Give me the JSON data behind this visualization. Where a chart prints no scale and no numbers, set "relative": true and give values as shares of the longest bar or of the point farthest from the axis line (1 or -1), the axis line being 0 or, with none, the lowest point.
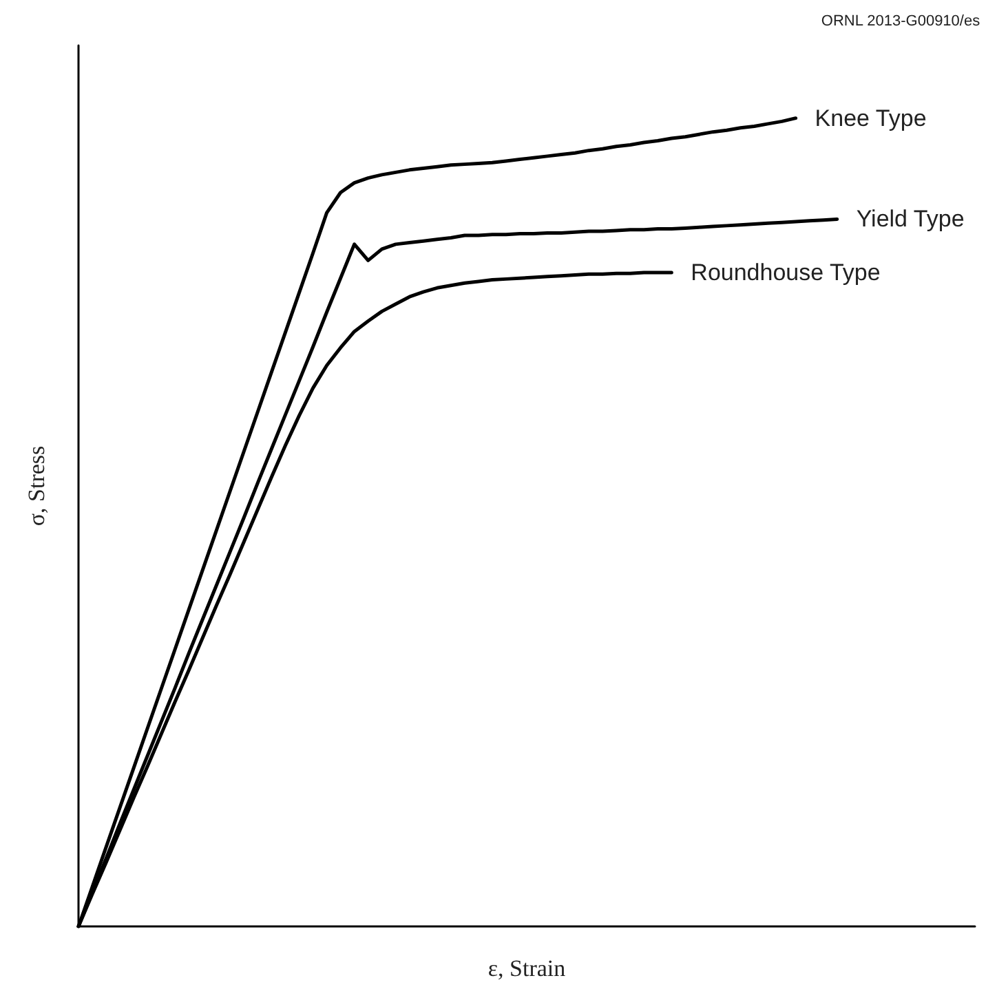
{
  "chart_data": {
    "type": "line",
    "relative": true,
    "xlabel": "ε, Strain",
    "ylabel": "σ, Stress",
    "annotations": [
      "ORNL 2013-G00910/es"
    ],
    "grid": false,
    "legend": false,
    "marker": "none",
    "line_style": "solid",
    "categories": [
      null,
      null,
      null,
      null,
      null,
      null,
      null,
      null,
      null,
      null,
      null,
      null,
      null,
      null,
      null,
      null,
      null,
      null,
      null,
      null,
      null,
      null,
      null,
      null,
      null,
      null,
      null,
      null,
      null,
      null,
      null,
      null,
      null,
      null,
      null,
      null,
      null,
      null,
      null,
      null,
      null,
      null,
      null,
      null,
      null,
      null,
      null,
      null,
      null,
      null,
      null,
      null,
      null,
      null,
      null,
      null,
      null,
      null,
      null,
      null,
      null,
      null,
      null,
      null,
      null,
      null
    ],
    "series": [
      {
        "name": "Knee Type",
        "color": "#000000",
        "values": [
          0,
          0.049,
          0.098,
          0.147,
          0.196,
          0.245,
          0.294,
          0.343,
          0.392,
          0.441,
          0.49,
          0.539,
          0.588,
          0.637,
          0.686,
          0.735,
          0.784,
          0.833,
          0.883,
          0.908,
          0.92,
          0.926,
          0.93,
          0.933,
          0.936,
          0.938,
          0.94,
          0.942,
          0.943,
          0.944,
          0.945,
          0.947,
          0.949,
          0.951,
          0.953,
          0.955,
          0.957,
          0.96,
          0.962,
          0.965,
          0.967,
          0.97,
          0.972,
          0.975,
          0.977,
          0.98,
          0.983,
          0.985,
          0.988,
          0.99,
          0.993,
          0.996,
          1,
          null,
          null,
          null,
          null,
          null,
          null,
          null,
          null,
          null,
          null,
          null,
          null,
          null
        ]
      },
      {
        "name": "Yield Type",
        "color": "#000000",
        "values": [
          0,
          0.042,
          0.084,
          0.127,
          0.169,
          0.211,
          0.253,
          0.295,
          0.338,
          0.38,
          0.422,
          0.464,
          0.506,
          0.549,
          0.591,
          0.633,
          0.675,
          0.717,
          0.76,
          0.802,
          0.844,
          0.824,
          0.838,
          0.844,
          0.846,
          0.848,
          0.85,
          0.852,
          0.855,
          0.855,
          0.856,
          0.856,
          0.857,
          0.857,
          0.858,
          0.858,
          0.859,
          0.86,
          0.86,
          0.861,
          0.862,
          0.862,
          0.863,
          0.863,
          0.864,
          0.865,
          0.866,
          0.867,
          0.868,
          0.869,
          0.87,
          0.871,
          0.872,
          0.873,
          0.874,
          0.875,
          null,
          null,
          null,
          null,
          null,
          null,
          null,
          null,
          null,
          null
        ]
      },
      {
        "name": "Roundhouse Type",
        "color": "#000000",
        "values": [
          0,
          0.04,
          0.079,
          0.119,
          0.159,
          0.198,
          0.238,
          0.278,
          0.317,
          0.357,
          0.397,
          0.436,
          0.476,
          0.516,
          0.556,
          0.595,
          0.632,
          0.666,
          0.694,
          0.716,
          0.736,
          0.749,
          0.761,
          0.77,
          0.779,
          0.785,
          0.79,
          0.793,
          0.796,
          0.798,
          0.8,
          0.801,
          0.802,
          0.803,
          0.804,
          0.805,
          0.806,
          0.807,
          0.807,
          0.808,
          0.808,
          0.809,
          0.809,
          0.809,
          null,
          null,
          null,
          null,
          null,
          null,
          null,
          null,
          null,
          null,
          null,
          null,
          null,
          null,
          null,
          null,
          null,
          null,
          null,
          null,
          null,
          null
        ]
      }
    ]
  }
}
